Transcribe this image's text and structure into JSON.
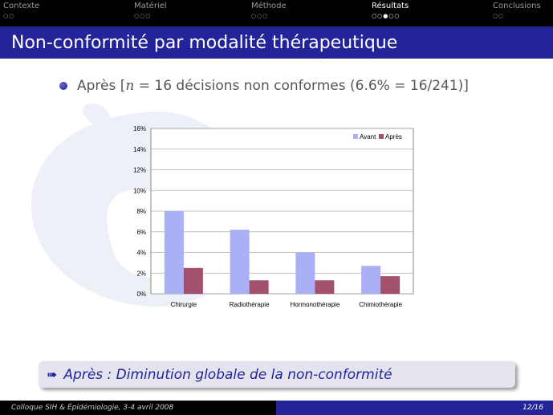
{
  "nav": {
    "sections": [
      {
        "label": "Contexte",
        "dots": "○○",
        "active": false
      },
      {
        "label": "Matériel",
        "dots": "○○○",
        "active": false
      },
      {
        "label": "Méthode",
        "dots": "○○○",
        "active": false
      },
      {
        "label": "Résultats",
        "dots": "○○●○○",
        "active": true
      },
      {
        "label": "Conclusions",
        "dots": "○○",
        "active": false
      }
    ]
  },
  "slide": {
    "title": "Non-conformité par modalité thérapeutique",
    "bullet_prefix": "Après [",
    "bullet_math_n": "n",
    "bullet_middle": " = 16 décisions non conformes (6.6% = 16/241)]",
    "callout_arrow": "➠",
    "callout_text": "Après : Diminution globale de la non-conformité"
  },
  "footer": {
    "left": "Colloque SIH & Épidémiologie, 3-4 avril 2008",
    "right": "12/16"
  },
  "colors": {
    "nav_bg": "#000000",
    "title_bg": "#24249a",
    "avant": "#aab0f5",
    "apres": "#a2506e"
  },
  "chart_data": {
    "type": "bar",
    "categories": [
      "Chirurgie",
      "Radiothérapie",
      "Hormonothérapie",
      "Chimiothérapie"
    ],
    "series": [
      {
        "name": "Avant",
        "values": [
          8.0,
          6.2,
          4.0,
          2.7
        ]
      },
      {
        "name": "Après",
        "values": [
          2.5,
          1.3,
          1.3,
          1.7
        ]
      }
    ],
    "ylim": [
      0,
      16
    ],
    "yticks": [
      "0%",
      "2%",
      "4%",
      "6%",
      "8%",
      "10%",
      "12%",
      "14%",
      "16%"
    ],
    "grid": true,
    "legend": "top-right"
  }
}
